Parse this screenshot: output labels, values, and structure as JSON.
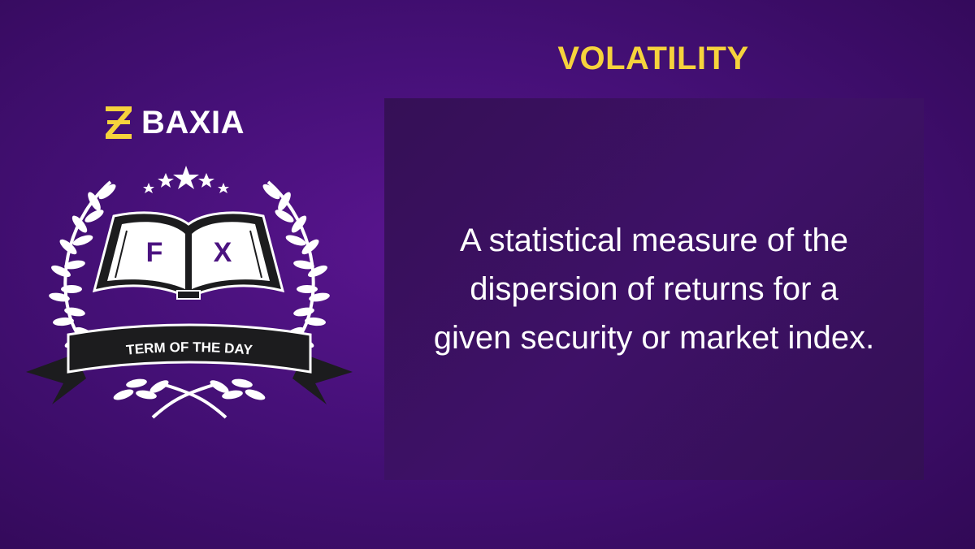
{
  "brand": {
    "name": "BAXIA",
    "accent_color": "#f6d33c",
    "logo_icon": "baxia-z-mark-icon"
  },
  "badge": {
    "book_letters": [
      "F",
      "X"
    ],
    "ribbon_text": "TERM OF THE DAY",
    "star_count": 5,
    "icons": [
      "laurel-wreath-icon",
      "open-book-icon",
      "star-icon",
      "ribbon-banner-icon"
    ]
  },
  "term": {
    "title": "VOLATILITY",
    "definition": "A statistical measure of the dispersion of returns for a given security or market index."
  },
  "colors": {
    "background": "#451077",
    "panel": "#3a1061",
    "title": "#f6d33c",
    "text": "#ffffff"
  }
}
